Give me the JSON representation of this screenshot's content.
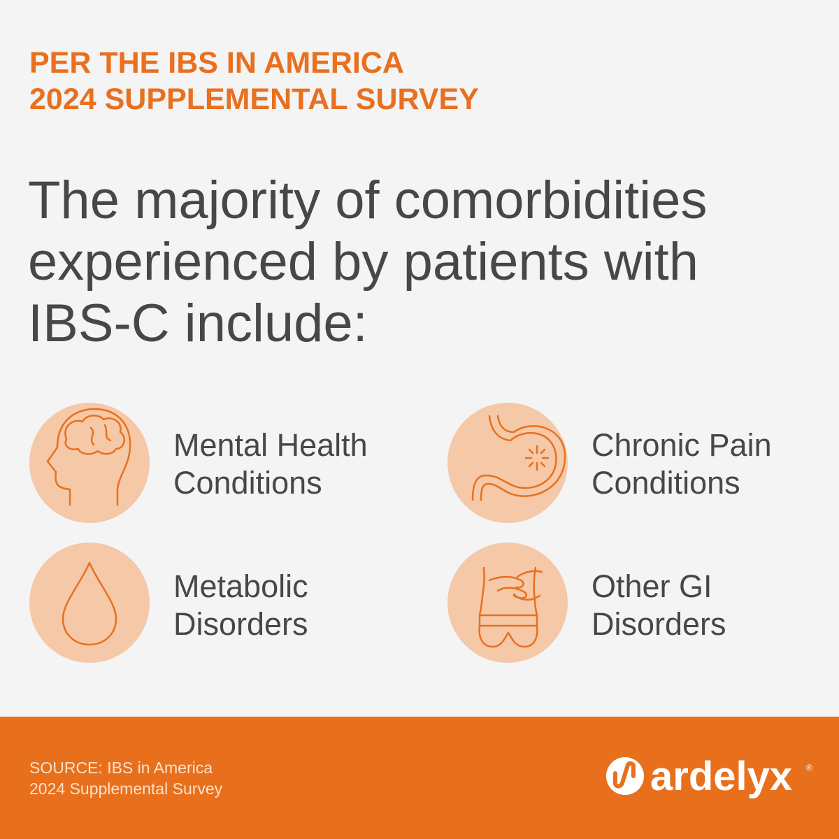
{
  "header": {
    "lines": [
      "PER THE IBS IN AMERICA",
      "2024 SUPPLEMENTAL SURVEY"
    ]
  },
  "headline": {
    "lines": [
      "The majority of comorbidities",
      "experienced by patients with",
      "IBS-C include:"
    ]
  },
  "items": [
    {
      "lines": [
        "Mental Health",
        "Conditions"
      ]
    },
    {
      "lines": [
        "Chronic Pain",
        "Conditions"
      ]
    },
    {
      "lines": [
        "Metabolic",
        "Disorders"
      ]
    },
    {
      "lines": [
        "Other GI",
        "Disorders"
      ]
    }
  ],
  "footer": {
    "source": [
      "SOURCE: IBS in America",
      "2024 Supplemental Survey"
    ],
    "logo": {
      "name": "ardelyx",
      "mark": "®"
    }
  }
}
